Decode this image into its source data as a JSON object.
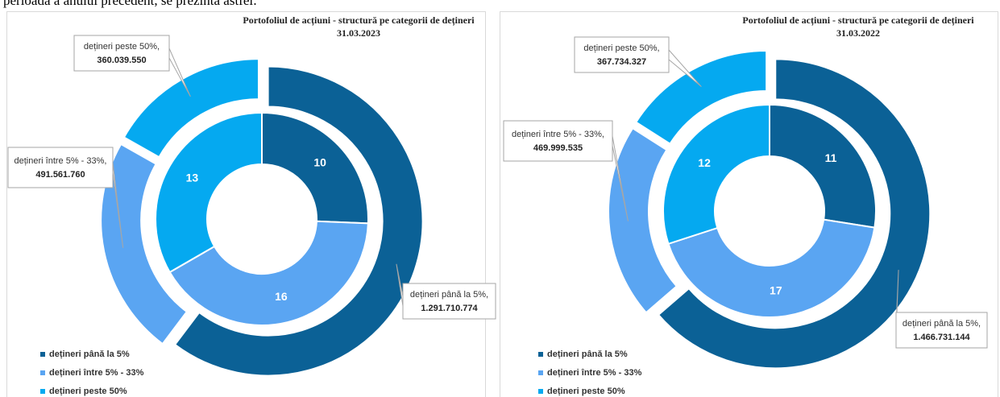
{
  "intro_text": "perioada a anului precedent, se prezintă astfel:",
  "chart_data": [
    {
      "type": "donut",
      "title": "Portofoliul de acțiuni - structură pe categorii de dețineri",
      "subtitle": "31.03.2023",
      "categories": [
        "dețineri până la 5%",
        "dețineri între 5% - 33%",
        "dețineri peste 50%"
      ],
      "colors": [
        "#0b6196",
        "#5aa5f2",
        "#05a9f0"
      ],
      "outer": {
        "values": [
          1291710774,
          491561760,
          360039550
        ],
        "value_labels": [
          "1.291.710.774",
          "491.561.760",
          "360.039.550"
        ],
        "callout_labels": [
          "dețineri până la 5%,",
          "dețineri între 5% - 33%,",
          "dețineri peste 50%,"
        ]
      },
      "inner": {
        "values": [
          10,
          16,
          13
        ]
      }
    },
    {
      "type": "donut",
      "title": "Portofoliul de acțiuni - structură pe categorii de dețineri",
      "subtitle": "31.03.2022",
      "categories": [
        "dețineri până la 5%",
        "dețineri între 5% - 33%",
        "dețineri peste 50%"
      ],
      "colors": [
        "#0b6196",
        "#5aa5f2",
        "#05a9f0"
      ],
      "outer": {
        "values": [
          1466731144,
          469999535,
          367734327
        ],
        "value_labels": [
          "1.466.731.144",
          "469.999.535",
          "367.734.327"
        ],
        "callout_labels": [
          "dețineri până la 5%,",
          "dețineri între 5% - 33%,",
          "dețineri peste 50%,"
        ]
      },
      "inner": {
        "values": [
          11,
          17,
          12
        ]
      }
    }
  ]
}
